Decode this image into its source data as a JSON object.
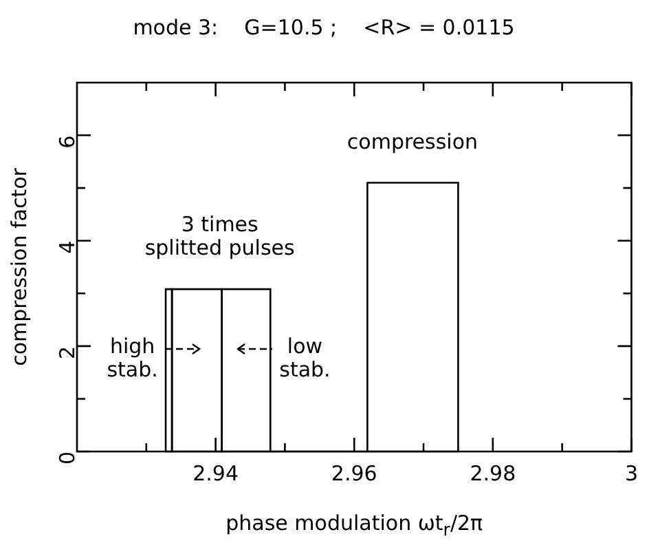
{
  "chart_data": {
    "type": "histogram",
    "title": "mode 3:    G=10.5 ;    <R> = 0.0115",
    "xlabel": "phase modulation ωt$_{r}$/2π",
    "ylabel": "compression factor",
    "bins": [
      2.9328,
      2.9337,
      2.9409,
      2.9479,
      2.9619,
      2.975
    ],
    "values": [
      3.08,
      3.08,
      3.08,
      0,
      5.1
    ],
    "color": "#000000",
    "xlim": [
      2.92,
      3.0
    ],
    "xticks": [
      {
        "value": 2.93,
        "label": null
      },
      {
        "value": 2.94,
        "label": "2.94"
      },
      {
        "value": 2.95,
        "label": null
      },
      {
        "value": 2.96,
        "label": "2.96"
      },
      {
        "value": 2.97,
        "label": null
      },
      {
        "value": 2.98,
        "label": "2.98"
      },
      {
        "value": 2.99,
        "label": null
      },
      3
    ],
    "ylim": [
      0,
      7
    ],
    "yticks": [
      0,
      {
        "value": 1,
        "label": null
      },
      2,
      {
        "value": 3,
        "label": null
      },
      4,
      {
        "value": 5,
        "label": null
      },
      6
    ],
    "annotations": [
      "compression",
      "3 times\nsplitted pulses",
      "high\nstab.",
      "low\nstab."
    ],
    "grid": false,
    "legend": false
  }
}
